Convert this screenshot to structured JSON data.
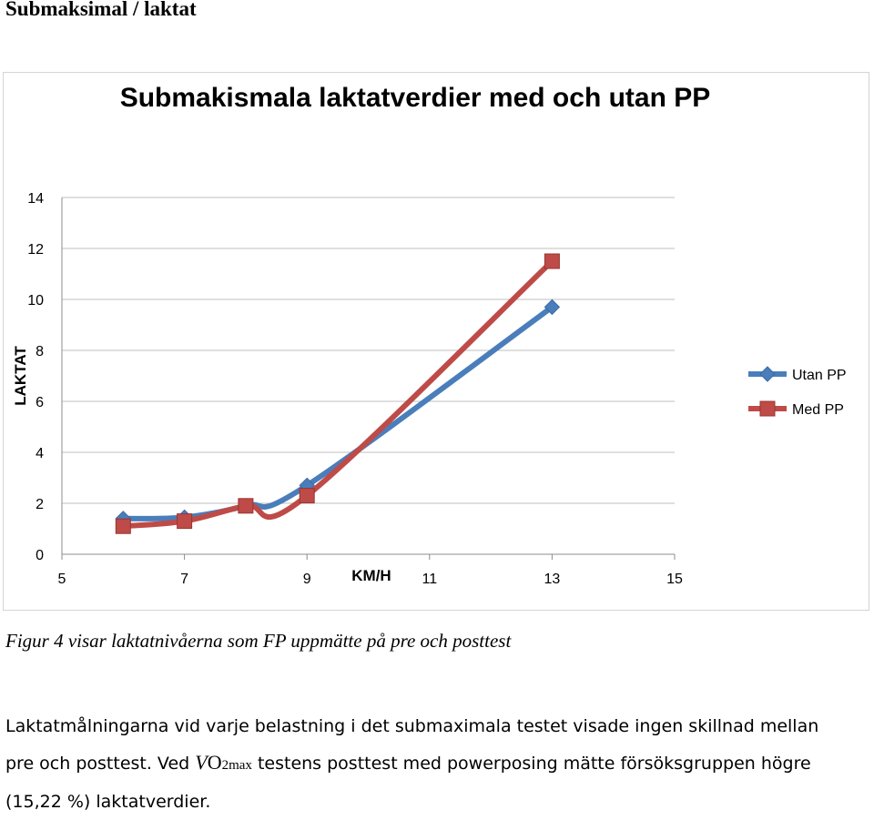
{
  "page": {
    "heading": "Submaksimal / laktat",
    "caption": "Figur 4 visar laktatnivåerna som FP uppmätte på pre och posttest",
    "body_line1": "Laktatmålningarna vid varje belastning i det submaximala testet visade ingen skillnad mellan",
    "body_line2_a": "pre och posttest. Ved ",
    "body_line2_v": "V",
    "body_line2_o": "O",
    "body_line2_sub": "2max",
    "body_line2_b": " testens posttest med powerposing mätte försöksgruppen högre",
    "body_line3": "(15,22 %) laktatverdier."
  },
  "chart_data": {
    "type": "line",
    "title": "Submakismala laktatverdier med och utan PP",
    "xlabel": "KM/H",
    "ylabel": "LAKTAT",
    "xlim": [
      5,
      15
    ],
    "ylim": [
      0,
      14
    ],
    "x_ticks": [
      5,
      7,
      9,
      11,
      13,
      15
    ],
    "y_ticks": [
      0,
      2,
      4,
      6,
      8,
      10,
      12,
      14
    ],
    "grid": "horizontal",
    "legend_position": "right",
    "series": [
      {
        "name": "Utan PP",
        "color": "#4a7ebb",
        "marker": "diamond",
        "x": [
          6,
          7,
          8,
          9,
          13
        ],
        "y": [
          1.4,
          1.45,
          1.9,
          2.7,
          9.7
        ]
      },
      {
        "name": "Med PP",
        "color": "#be4b48",
        "marker": "square",
        "x": [
          6,
          7,
          8,
          9,
          13
        ],
        "y": [
          1.1,
          1.3,
          1.9,
          2.3,
          11.5
        ]
      }
    ]
  }
}
